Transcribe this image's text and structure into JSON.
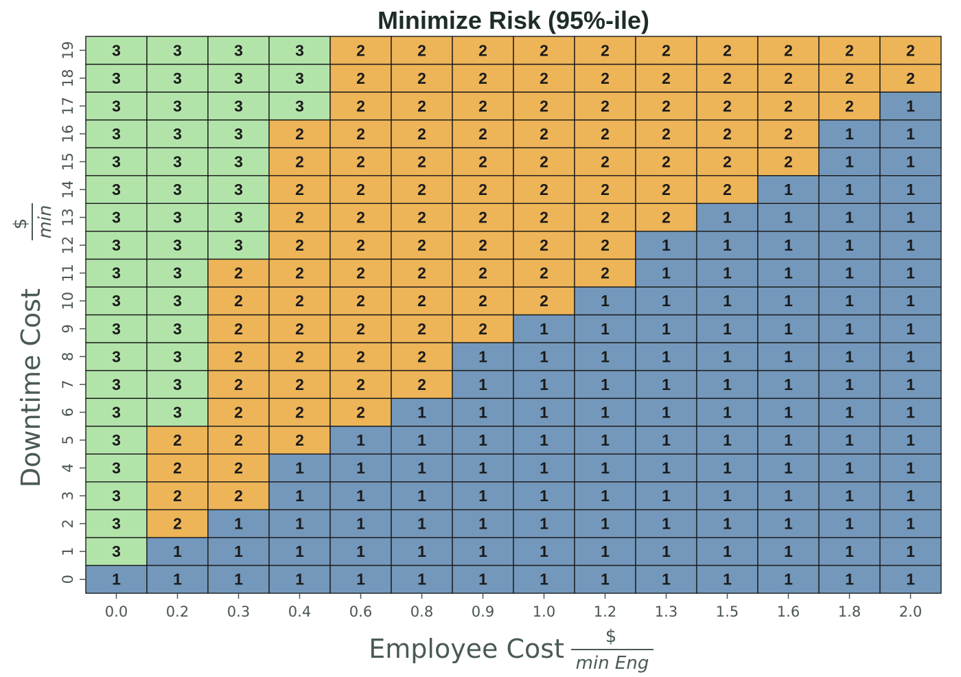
{
  "chart_data": {
    "type": "heatmap",
    "title": "Minimize Risk (95%-ile)",
    "xlabel": "Employee Cost",
    "xlabel_unit_numerator": "$",
    "xlabel_unit_denominator": "min Eng",
    "ylabel": "Downtime Cost",
    "ylabel_unit_numerator": "$",
    "ylabel_unit_denominator": "min",
    "x_ticks": [
      "0.0",
      "0.2",
      "0.3",
      "0.4",
      "0.6",
      "0.8",
      "0.9",
      "1.0",
      "1.2",
      "1.3",
      "1.5",
      "1.6",
      "1.8",
      "2.0"
    ],
    "y_ticks": [
      "0",
      "1",
      "2",
      "3",
      "4",
      "5",
      "6",
      "7",
      "8",
      "9",
      "10",
      "11",
      "12",
      "13",
      "14",
      "15",
      "16",
      "17",
      "18",
      "19"
    ],
    "value_colors": {
      "1": "#7498bb",
      "2": "#edb458",
      "3": "#b2e4aa"
    },
    "values": [
      [
        1,
        1,
        1,
        1,
        1,
        1,
        1,
        1,
        1,
        1,
        1,
        1,
        1,
        1
      ],
      [
        3,
        1,
        1,
        1,
        1,
        1,
        1,
        1,
        1,
        1,
        1,
        1,
        1,
        1
      ],
      [
        3,
        2,
        1,
        1,
        1,
        1,
        1,
        1,
        1,
        1,
        1,
        1,
        1,
        1
      ],
      [
        3,
        2,
        2,
        1,
        1,
        1,
        1,
        1,
        1,
        1,
        1,
        1,
        1,
        1
      ],
      [
        3,
        2,
        2,
        1,
        1,
        1,
        1,
        1,
        1,
        1,
        1,
        1,
        1,
        1
      ],
      [
        3,
        2,
        2,
        2,
        1,
        1,
        1,
        1,
        1,
        1,
        1,
        1,
        1,
        1
      ],
      [
        3,
        3,
        2,
        2,
        2,
        1,
        1,
        1,
        1,
        1,
        1,
        1,
        1,
        1
      ],
      [
        3,
        3,
        2,
        2,
        2,
        2,
        1,
        1,
        1,
        1,
        1,
        1,
        1,
        1
      ],
      [
        3,
        3,
        2,
        2,
        2,
        2,
        1,
        1,
        1,
        1,
        1,
        1,
        1,
        1
      ],
      [
        3,
        3,
        2,
        2,
        2,
        2,
        2,
        1,
        1,
        1,
        1,
        1,
        1,
        1
      ],
      [
        3,
        3,
        2,
        2,
        2,
        2,
        2,
        2,
        1,
        1,
        1,
        1,
        1,
        1
      ],
      [
        3,
        3,
        2,
        2,
        2,
        2,
        2,
        2,
        2,
        1,
        1,
        1,
        1,
        1
      ],
      [
        3,
        3,
        3,
        2,
        2,
        2,
        2,
        2,
        2,
        1,
        1,
        1,
        1,
        1
      ],
      [
        3,
        3,
        3,
        2,
        2,
        2,
        2,
        2,
        2,
        2,
        1,
        1,
        1,
        1
      ],
      [
        3,
        3,
        3,
        2,
        2,
        2,
        2,
        2,
        2,
        2,
        2,
        1,
        1,
        1
      ],
      [
        3,
        3,
        3,
        2,
        2,
        2,
        2,
        2,
        2,
        2,
        2,
        2,
        1,
        1
      ],
      [
        3,
        3,
        3,
        2,
        2,
        2,
        2,
        2,
        2,
        2,
        2,
        2,
        1,
        1
      ],
      [
        3,
        3,
        3,
        3,
        2,
        2,
        2,
        2,
        2,
        2,
        2,
        2,
        2,
        1
      ],
      [
        3,
        3,
        3,
        3,
        2,
        2,
        2,
        2,
        2,
        2,
        2,
        2,
        2,
        2
      ],
      [
        3,
        3,
        3,
        3,
        2,
        2,
        2,
        2,
        2,
        2,
        2,
        2,
        2,
        2
      ]
    ]
  }
}
